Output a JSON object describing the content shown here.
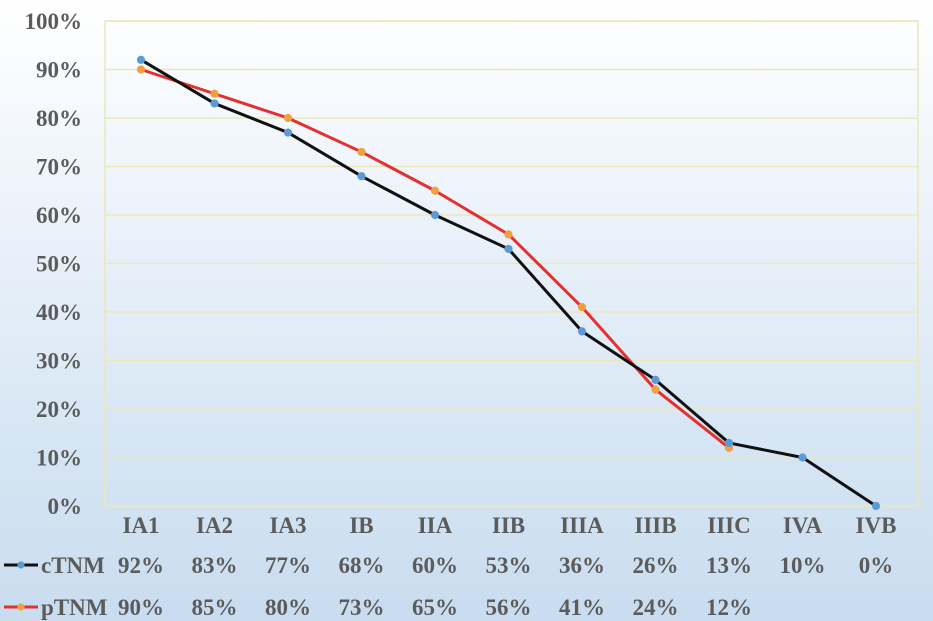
{
  "chart_data": {
    "type": "line",
    "categories": [
      "IA1",
      "IA2",
      "IA3",
      "IB",
      "IIA",
      "IIB",
      "IIIA",
      "IIIB",
      "IIIC",
      "IVA",
      "IVB"
    ],
    "series": [
      {
        "name": "cTNM",
        "values": [
          92,
          83,
          77,
          68,
          60,
          53,
          36,
          26,
          13,
          10,
          0
        ],
        "labels": [
          "92%",
          "83%",
          "77%",
          "68%",
          "60%",
          "53%",
          "36%",
          "26%",
          "13%",
          "10%",
          "0%"
        ],
        "line_color": "#111111",
        "marker_color": "#5b9bd5"
      },
      {
        "name": "pTNM",
        "values": [
          90,
          85,
          80,
          73,
          65,
          56,
          41,
          24,
          12,
          null,
          null
        ],
        "labels": [
          "90%",
          "85%",
          "80%",
          "73%",
          "65%",
          "56%",
          "41%",
          "24%",
          "12%",
          "",
          ""
        ],
        "line_color": "#e53030",
        "marker_color": "#f0a040"
      }
    ],
    "yticks": [
      "0%",
      "10%",
      "20%",
      "30%",
      "40%",
      "50%",
      "60%",
      "70%",
      "80%",
      "90%",
      "100%"
    ],
    "ylim": [
      0,
      100
    ],
    "grid": true,
    "grid_color": "#ece7b8",
    "legend": "table-bottom"
  }
}
